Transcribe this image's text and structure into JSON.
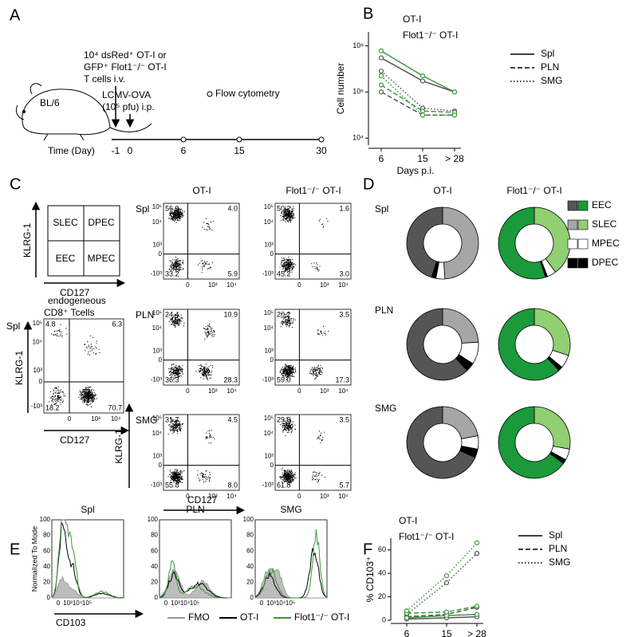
{
  "a": {
    "panel": "A",
    "mouse": "BL/6",
    "transfer": [
      "10⁴ dsRed⁺ OT-I or",
      "GFP⁺ Flot1⁻/⁻ OT-I",
      "T cells i.v."
    ],
    "infection": [
      "LCMV-OVA",
      "(10⁵ pfu) i.p."
    ],
    "readout": "Flow cytometry",
    "axis_label": "Time (Day)",
    "ticks": [
      "-1",
      "0",
      "6",
      "15",
      "30"
    ]
  },
  "c": {
    "panel": "C",
    "schematic": {
      "quadrants": [
        "SLEC",
        "DPEC",
        "EEC",
        "MPEC"
      ]
    },
    "endogenous": {
      "title": [
        "endogeneous",
        "CD8⁺ Tcells"
      ],
      "row": "Spl",
      "quadrants": [
        "4.8",
        "6.3",
        "18.2",
        "70.7"
      ]
    },
    "columns": [
      "OT-I",
      "Flot1⁻/⁻ OT-I"
    ],
    "rows": [
      "Spl",
      "PLN",
      "SMG"
    ],
    "plots": [
      [
        [
          "56.9",
          "4.0",
          "33.2",
          "5.9"
        ],
        [
          "50.2",
          "1.6",
          "45.2",
          "3.0"
        ]
      ],
      [
        [
          "24.4",
          "10.9",
          "36.3",
          "28.3"
        ],
        [
          "20.2",
          "3.5",
          "59.0",
          "17.3"
        ]
      ],
      [
        [
          "31.7",
          "4.5",
          "55.8",
          "8.0"
        ],
        [
          "29.0",
          "3.5",
          "61.8",
          "5.7"
        ]
      ]
    ],
    "yticks": [
      "10⁵",
      "10⁴",
      "10³",
      "0",
      "-10³"
    ],
    "xticks": [
      "0",
      "10³",
      "10⁴"
    ],
    "ylabel": "KLRG-1",
    "xlabel": "CD127"
  },
  "e": {
    "panel": "E",
    "titles": [
      "Spl",
      "PLN",
      "SMG"
    ],
    "ylabel": "Normalized To Mode",
    "xlabel": "CD103",
    "yticks": [
      "100",
      "80",
      "60",
      "40",
      "20",
      "0"
    ],
    "xticks": [
      "0",
      "10³",
      "10⁴",
      "10⁵"
    ],
    "legend": [
      "FMO",
      "OT-I",
      "Flot1⁻/⁻ OT-I"
    ]
  },
  "chart_data": [
    {
      "type": "line",
      "panel": "B",
      "ylabel": "Cell number",
      "xlabel": "Days p.i.",
      "categories": [
        "6",
        "15",
        "> 28"
      ],
      "log_y": true,
      "ylim": [
        5000,
        400000000
      ],
      "yticks": [
        {
          "value": 10000,
          "label": "10⁴"
        },
        {
          "value": 1000000,
          "label": "10⁶"
        },
        {
          "value": 100000000,
          "label": "10⁸"
        }
      ],
      "groups": [
        {
          "name": "OT-I",
          "color": "#555555",
          "series": [
            {
              "name": "Spl",
              "dash": "solid",
              "values": [
                30000000,
                3000000,
                1000000
              ]
            },
            {
              "name": "PLN",
              "dash": "dashed",
              "values": [
                1000000,
                100000,
                100000
              ]
            },
            {
              "name": "SMG",
              "dash": "dotted",
              "values": [
                8000000,
                200000,
                150000
              ]
            }
          ]
        },
        {
          "name": "Flot1⁻/⁻ OT-I",
          "color": "#3a9a3a",
          "series": [
            {
              "name": "Spl",
              "dash": "solid",
              "values": [
                60000000,
                5000000,
                1000000
              ]
            },
            {
              "name": "PLN",
              "dash": "dashed",
              "values": [
                2000000,
                150000,
                130000
              ]
            },
            {
              "name": "SMG",
              "dash": "dotted",
              "values": [
                5000000,
                100000,
                100000
              ]
            }
          ]
        }
      ]
    },
    {
      "type": "line",
      "panel": "F",
      "ylabel": "% CD103⁺",
      "xlabel": "Days p.i.",
      "categories": [
        "6",
        "15",
        "> 28"
      ],
      "log_y": false,
      "ylim": [
        0,
        70
      ],
      "yticks": [
        0,
        20,
        40,
        60
      ],
      "groups": [
        {
          "name": "OT-I",
          "color": "#555555",
          "series": [
            {
              "name": "Spl",
              "dash": "solid",
              "values": [
                1,
                2,
                3
              ]
            },
            {
              "name": "PLN",
              "dash": "dashed",
              "values": [
                3,
                5,
                11
              ]
            },
            {
              "name": "SMG",
              "dash": "dotted",
              "values": [
                5,
                32,
                57
              ]
            }
          ]
        },
        {
          "name": "Flot1⁻/⁻ OT-I",
          "color": "#3a9a3a",
          "series": [
            {
              "name": "Spl",
              "dash": "solid",
              "values": [
                2,
                4,
                5
              ]
            },
            {
              "name": "PLN",
              "dash": "dashed",
              "values": [
                6,
                7,
                12
              ]
            },
            {
              "name": "SMG",
              "dash": "dotted",
              "values": [
                8,
                38,
                66
              ]
            }
          ]
        }
      ]
    },
    {
      "type": "donut",
      "panel": "D",
      "columns": [
        "OT-I",
        "Flot1⁻/⁻ OT-I"
      ],
      "rows": [
        "Spl",
        "PLN",
        "SMG"
      ],
      "categories": [
        "EEC",
        "SLEC",
        "MPEC",
        "DPEC"
      ],
      "colors": [
        [
          "#555555",
          "#a6a6a6",
          "#ffffff",
          "#000000"
        ],
        [
          "#1a9a3a",
          "#90cf72",
          "#ffffff",
          "#000000"
        ]
      ],
      "values": [
        [
          [
            45,
            49,
            4,
            2
          ],
          [
            55,
            40,
            4,
            1
          ]
        ],
        [
          [
            62,
            24,
            10,
            4
          ],
          [
            62,
            30,
            6,
            2
          ]
        ],
        [
          [
            68,
            22,
            6,
            4
          ],
          [
            65,
            28,
            5,
            2
          ]
        ]
      ]
    }
  ]
}
